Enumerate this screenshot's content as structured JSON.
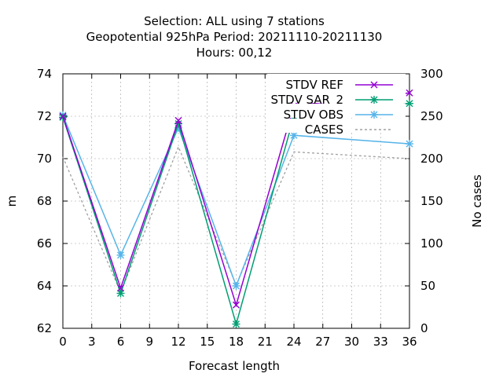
{
  "chart_data": {
    "type": "line",
    "title_lines": [
      "Selection: ALL using     7 stations",
      "Geopotential 925hPa   Period: 20211110-20211130",
      "Hours:  00,12"
    ],
    "xlabel": "Forecast length",
    "ylabel": "m",
    "y2label": "No cases",
    "xlim": [
      0,
      36
    ],
    "xticks": [
      0,
      3,
      6,
      9,
      12,
      15,
      18,
      21,
      24,
      27,
      30,
      33,
      36
    ],
    "ylim": [
      62,
      74
    ],
    "yticks": [
      62,
      64,
      66,
      68,
      70,
      72,
      74
    ],
    "y2lim": [
      0,
      300
    ],
    "y2ticks": [
      0,
      50,
      100,
      150,
      200,
      250,
      300
    ],
    "grid": true,
    "legend_position": "top-right",
    "series": [
      {
        "name": "STDV REF",
        "axis": "y",
        "color": "#9400d3",
        "marker": "x",
        "x": [
          0,
          6,
          12,
          18,
          24,
          36
        ],
        "values": [
          72.0,
          63.9,
          71.8,
          63.1,
          72.5,
          73.1
        ]
      },
      {
        "name": "STDV SAR_2",
        "axis": "y",
        "color": "#009e73",
        "marker": "asterisk",
        "x": [
          0,
          6,
          12,
          18,
          24,
          36
        ],
        "values": [
          71.95,
          63.65,
          71.65,
          62.2,
          72.0,
          72.6
        ]
      },
      {
        "name": "STDV OBS",
        "axis": "y",
        "color": "#56b4e9",
        "marker": "asterisk",
        "x": [
          0,
          6,
          12,
          18,
          24,
          36
        ],
        "values": [
          72.05,
          65.45,
          71.45,
          64.0,
          71.1,
          70.7
        ]
      },
      {
        "name": "CASES",
        "axis": "y2",
        "color": "#a0a0a0",
        "dashed": true,
        "x": [
          0,
          6,
          12,
          18,
          24,
          36
        ],
        "values": [
          202,
          42,
          214,
          51,
          208,
          200
        ]
      }
    ]
  }
}
